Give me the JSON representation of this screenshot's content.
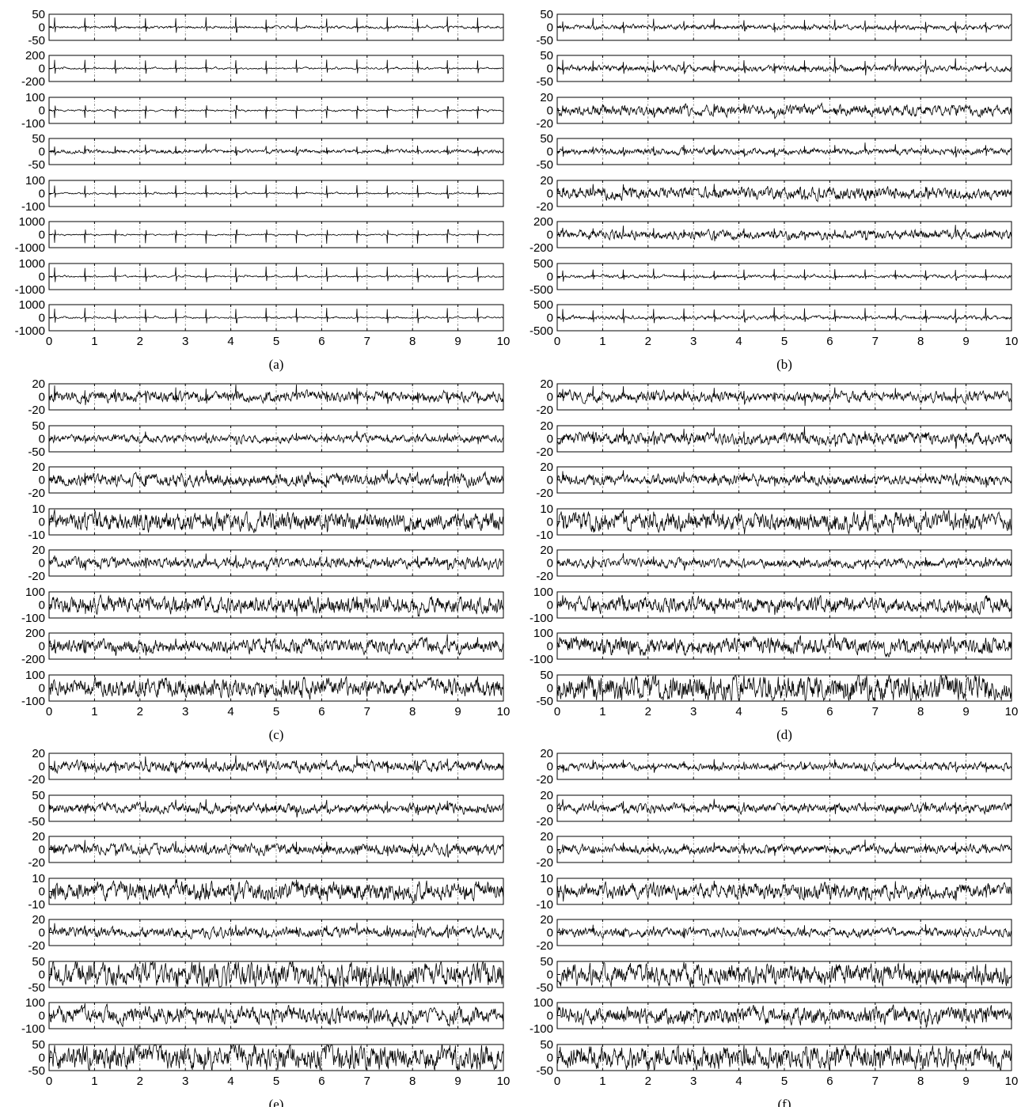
{
  "figure": {
    "x_axis": {
      "range": [
        0,
        10
      ],
      "ticks": [
        "0",
        "1",
        "2",
        "3",
        "4",
        "5",
        "6",
        "7",
        "8",
        "9",
        "10"
      ]
    },
    "vertical_gridlines": "dash-dot at each integer x",
    "trace_color": "#000000",
    "note": "Each panel shows 8 stacked noisy ECG-like time-series traces with periodic spikes (period approx. 0.67)."
  },
  "chart_data": [
    {
      "type": "line",
      "panel": "a",
      "caption": "(a)",
      "xlim": [
        0,
        10
      ],
      "subplots": [
        {
          "ylim": [
            -50,
            50
          ],
          "yticks": [
            "50",
            "0",
            "-50"
          ]
        },
        {
          "ylim": [
            -200,
            200
          ],
          "yticks": [
            "200",
            "0",
            "-200"
          ]
        },
        {
          "ylim": [
            -100,
            100
          ],
          "yticks": [
            "100",
            "0",
            "-100"
          ]
        },
        {
          "ylim": [
            -50,
            50
          ],
          "yticks": [
            "50",
            "0",
            "-50"
          ]
        },
        {
          "ylim": [
            -100,
            100
          ],
          "yticks": [
            "100",
            "0",
            "-100"
          ]
        },
        {
          "ylim": [
            -1000,
            1000
          ],
          "yticks": [
            "1000",
            "0",
            "-1000"
          ]
        },
        {
          "ylim": [
            -1000,
            1000
          ],
          "yticks": [
            "1000",
            "0",
            "-1000"
          ]
        },
        {
          "ylim": [
            -1000,
            1000
          ],
          "yticks": [
            "1000",
            "0",
            "-1000"
          ]
        }
      ]
    },
    {
      "type": "line",
      "panel": "b",
      "caption": "(b)",
      "xlim": [
        0,
        10
      ],
      "subplots": [
        {
          "ylim": [
            -50,
            50
          ],
          "yticks": [
            "50",
            "0",
            "-50"
          ]
        },
        {
          "ylim": [
            -50,
            50
          ],
          "yticks": [
            "50",
            "0",
            "-50"
          ]
        },
        {
          "ylim": [
            -20,
            20
          ],
          "yticks": [
            "20",
            "0",
            "-20"
          ]
        },
        {
          "ylim": [
            -50,
            50
          ],
          "yticks": [
            "50",
            "0",
            "-50"
          ]
        },
        {
          "ylim": [
            -20,
            20
          ],
          "yticks": [
            "20",
            "0",
            "-20"
          ]
        },
        {
          "ylim": [
            -200,
            200
          ],
          "yticks": [
            "200",
            "0",
            "-200"
          ]
        },
        {
          "ylim": [
            -500,
            500
          ],
          "yticks": [
            "500",
            "0",
            "-500"
          ]
        },
        {
          "ylim": [
            -500,
            500
          ],
          "yticks": [
            "500",
            "0",
            "-500"
          ]
        }
      ]
    },
    {
      "type": "line",
      "panel": "c",
      "caption": "(c)",
      "xlim": [
        0,
        10
      ],
      "subplots": [
        {
          "ylim": [
            -20,
            20
          ],
          "yticks": [
            "20",
            "0",
            "-20"
          ]
        },
        {
          "ylim": [
            -50,
            50
          ],
          "yticks": [
            "50",
            "0",
            "-50"
          ]
        },
        {
          "ylim": [
            -20,
            20
          ],
          "yticks": [
            "20",
            "0",
            "-20"
          ]
        },
        {
          "ylim": [
            -10,
            10
          ],
          "yticks": [
            "10",
            "0",
            "-10"
          ]
        },
        {
          "ylim": [
            -20,
            20
          ],
          "yticks": [
            "20",
            "0",
            "-20"
          ]
        },
        {
          "ylim": [
            -100,
            100
          ],
          "yticks": [
            "100",
            "0",
            "-100"
          ]
        },
        {
          "ylim": [
            -200,
            200
          ],
          "yticks": [
            "200",
            "0",
            "-200"
          ]
        },
        {
          "ylim": [
            -100,
            100
          ],
          "yticks": [
            "100",
            "0",
            "-100"
          ]
        }
      ]
    },
    {
      "type": "line",
      "panel": "d",
      "caption": "(d)",
      "xlim": [
        0,
        10
      ],
      "subplots": [
        {
          "ylim": [
            -20,
            20
          ],
          "yticks": [
            "20",
            "0",
            "-20"
          ]
        },
        {
          "ylim": [
            -20,
            20
          ],
          "yticks": [
            "20",
            "0",
            "-20"
          ]
        },
        {
          "ylim": [
            -20,
            20
          ],
          "yticks": [
            "20",
            "0",
            "-20"
          ]
        },
        {
          "ylim": [
            -10,
            10
          ],
          "yticks": [
            "10",
            "0",
            "-10"
          ]
        },
        {
          "ylim": [
            -20,
            20
          ],
          "yticks": [
            "20",
            "0",
            "-20"
          ]
        },
        {
          "ylim": [
            -100,
            100
          ],
          "yticks": [
            "100",
            "0",
            "-100"
          ]
        },
        {
          "ylim": [
            -100,
            100
          ],
          "yticks": [
            "100",
            "0",
            "-100"
          ]
        },
        {
          "ylim": [
            -50,
            50
          ],
          "yticks": [
            "50",
            "0",
            "-50"
          ]
        }
      ]
    },
    {
      "type": "line",
      "panel": "e",
      "caption": "(e)",
      "xlim": [
        0,
        10
      ],
      "subplots": [
        {
          "ylim": [
            -20,
            20
          ],
          "yticks": [
            "20",
            "0",
            "-20"
          ]
        },
        {
          "ylim": [
            -50,
            50
          ],
          "yticks": [
            "50",
            "0",
            "-50"
          ]
        },
        {
          "ylim": [
            -20,
            20
          ],
          "yticks": [
            "20",
            "0",
            "-20"
          ]
        },
        {
          "ylim": [
            -10,
            10
          ],
          "yticks": [
            "10",
            "0",
            "-10"
          ]
        },
        {
          "ylim": [
            -20,
            20
          ],
          "yticks": [
            "20",
            "0",
            "-20"
          ]
        },
        {
          "ylim": [
            -50,
            50
          ],
          "yticks": [
            "50",
            "0",
            "-50"
          ]
        },
        {
          "ylim": [
            -100,
            100
          ],
          "yticks": [
            "100",
            "0",
            "-100"
          ]
        },
        {
          "ylim": [
            -50,
            50
          ],
          "yticks": [
            "50",
            "0",
            "-50"
          ]
        }
      ]
    },
    {
      "type": "line",
      "panel": "f",
      "caption": "(f)",
      "xlim": [
        0,
        10
      ],
      "subplots": [
        {
          "ylim": [
            -20,
            20
          ],
          "yticks": [
            "20",
            "0",
            "-20"
          ]
        },
        {
          "ylim": [
            -20,
            20
          ],
          "yticks": [
            "20",
            "0",
            "-20"
          ]
        },
        {
          "ylim": [
            -20,
            20
          ],
          "yticks": [
            "20",
            "0",
            "-20"
          ]
        },
        {
          "ylim": [
            -10,
            10
          ],
          "yticks": [
            "10",
            "0",
            "-10"
          ]
        },
        {
          "ylim": [
            -20,
            20
          ],
          "yticks": [
            "20",
            "0",
            "-20"
          ]
        },
        {
          "ylim": [
            -50,
            50
          ],
          "yticks": [
            "50",
            "0",
            "-50"
          ]
        },
        {
          "ylim": [
            -100,
            100
          ],
          "yticks": [
            "100",
            "0",
            "-100"
          ]
        },
        {
          "ylim": [
            -50,
            50
          ],
          "yticks": [
            "50",
            "0",
            "-50"
          ]
        }
      ]
    }
  ]
}
